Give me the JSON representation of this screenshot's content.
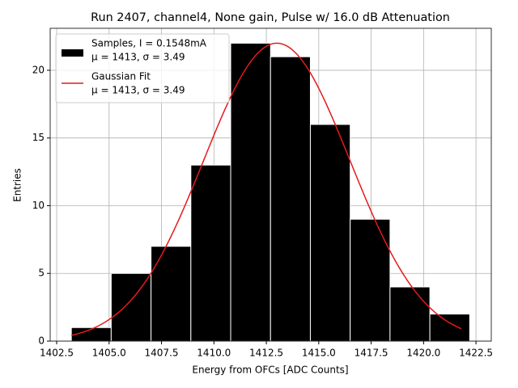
{
  "chart_data": {
    "type": "histogram",
    "title": "Run 2407, channel4, None gain, Pulse w/ 16.0 dB Attenuation",
    "xlabel": "Energy from OFCs [ADC Counts]",
    "ylabel": "Entries",
    "bins": [
      1403.2,
      1405.1,
      1407.0,
      1408.9,
      1410.8,
      1412.7,
      1414.6,
      1416.5,
      1418.4,
      1420.3,
      1422.2
    ],
    "counts": [
      1,
      5,
      7,
      13,
      22,
      21,
      16,
      9,
      4,
      2
    ],
    "color": "#000000",
    "name": [
      "Samples, I = 0.1548mA",
      "μ = 1413, σ = 3.49"
    ],
    "fit": {
      "name": [
        "Gaussian Fit",
        "μ = 1413, σ = 3.49"
      ],
      "mu": 1413,
      "sigma": 3.49,
      "amplitude": 22,
      "x_range": [
        1403.2,
        1421.8
      ],
      "color": "#e41a1c"
    },
    "xlim": [
      1402.19,
      1423.23
    ],
    "ylim": [
      0,
      23.1
    ],
    "xticks": [
      1402.5,
      {
        "value": 1405,
        "label": "1405.0"
      },
      1407.5,
      {
        "value": 1410,
        "label": "1410.0"
      },
      1412.5,
      {
        "value": 1415,
        "label": "1415.0"
      },
      1417.5,
      {
        "value": 1420,
        "label": "1420.0"
      },
      1422.5
    ],
    "yticks": [
      0,
      5,
      10,
      15,
      20
    ],
    "grid": true,
    "legend": "upper left"
  }
}
